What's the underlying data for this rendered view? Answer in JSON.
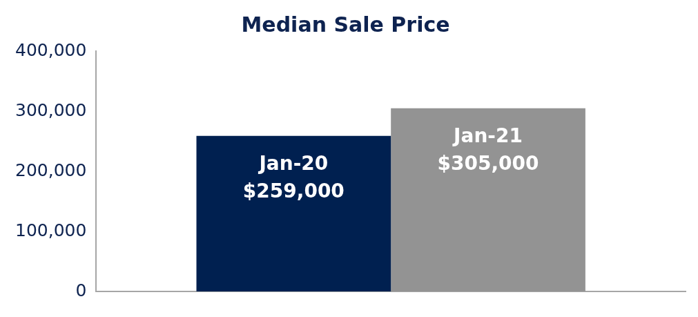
{
  "chart_data": {
    "type": "bar",
    "title": "Median Sale Price",
    "categories": [
      null
    ],
    "series": [
      {
        "name": "Jan-20",
        "color": "#002050",
        "values": [
          259000
        ],
        "value_labels": [
          "$259,000"
        ]
      },
      {
        "name": "Jan-21",
        "color": "#939393",
        "values": [
          305000
        ],
        "value_labels": [
          "$305,000"
        ]
      }
    ],
    "ylim": [
      0,
      400000
    ],
    "yticks": [
      {
        "value": 0,
        "label": "0"
      },
      {
        "value": 100000,
        "label": "100,000"
      },
      {
        "value": 200000,
        "label": "200,000"
      },
      {
        "value": 300000,
        "label": "300,000"
      },
      {
        "value": 400000,
        "label": "400,000"
      }
    ],
    "grid": false,
    "legend": false,
    "tick_labels": "y"
  }
}
